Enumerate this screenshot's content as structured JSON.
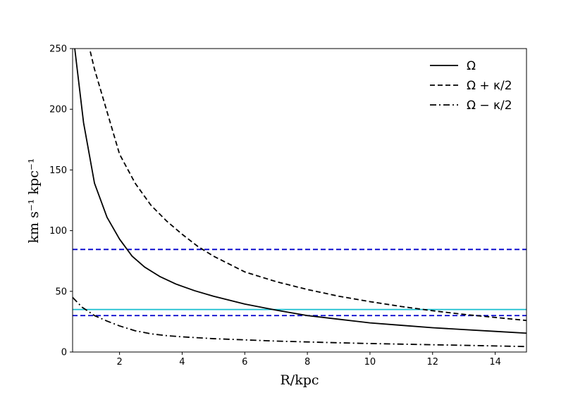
{
  "chart_data": {
    "type": "line",
    "title": "",
    "xlabel": "R/kpc",
    "ylabel": "km s⁻¹ kpc⁻¹",
    "xlim": [
      0.5,
      15
    ],
    "ylim": [
      0,
      250
    ],
    "x_ticks": [
      2,
      4,
      6,
      8,
      10,
      12,
      14
    ],
    "y_ticks": [
      0,
      50,
      100,
      150,
      200,
      250
    ],
    "grid": false,
    "legend_position": "top-right",
    "series": [
      {
        "name": "Ω",
        "style": "solid",
        "color": "#000000",
        "x": [
          0.5,
          0.85,
          1.2,
          1.6,
          2.0,
          2.4,
          2.8,
          3.3,
          3.8,
          4.4,
          5.0,
          6.0,
          7.0,
          8.0,
          9.0,
          10.0,
          11.0,
          12.0,
          13.0,
          14.0,
          15.0
        ],
        "y": [
          265,
          189,
          139,
          111,
          93,
          79,
          70,
          62,
          56,
          50.5,
          46,
          39.5,
          34.5,
          30,
          27,
          24,
          22,
          20,
          18.5,
          17,
          15.5
        ]
      },
      {
        "name": "Ω + κ/2",
        "style": "dashed",
        "color": "#000000",
        "x": [
          0.95,
          1.2,
          1.6,
          2.0,
          2.5,
          3.0,
          3.5,
          4.0,
          4.5,
          5.0,
          6.0,
          7.0,
          8.0,
          9.0,
          10.0,
          11.0,
          12.0,
          13.0,
          14.0,
          15.0
        ],
        "y": [
          260,
          233,
          198,
          163,
          139,
          121,
          108,
          97,
          87,
          79,
          66,
          58,
          51.5,
          46,
          41.5,
          37.5,
          34,
          31,
          28.5,
          26
        ]
      },
      {
        "name": "Ω − κ/2",
        "style": "dashdot",
        "color": "#000000",
        "x": [
          0.5,
          0.8,
          1.2,
          1.6,
          2.0,
          2.5,
          3.0,
          3.5,
          4.0,
          5.0,
          6.0,
          7.0,
          8.0,
          9.0,
          10.0,
          11.0,
          12.0,
          13.0,
          14.0,
          15.0
        ],
        "y": [
          45,
          37,
          30,
          25.5,
          21.5,
          17.5,
          15,
          13.5,
          12.5,
          11,
          10,
          9,
          8.3,
          7.6,
          7,
          6.5,
          6,
          5.5,
          5,
          4.5
        ]
      }
    ],
    "reference_lines": [
      {
        "orientation": "horizontal",
        "y": 84.5,
        "style": "dashed",
        "color": "#0000cc"
      },
      {
        "orientation": "horizontal",
        "y": 35,
        "style": "solid",
        "color": "#17becf"
      },
      {
        "orientation": "horizontal",
        "y": 30,
        "style": "dashed",
        "color": "#0000cc"
      }
    ]
  }
}
